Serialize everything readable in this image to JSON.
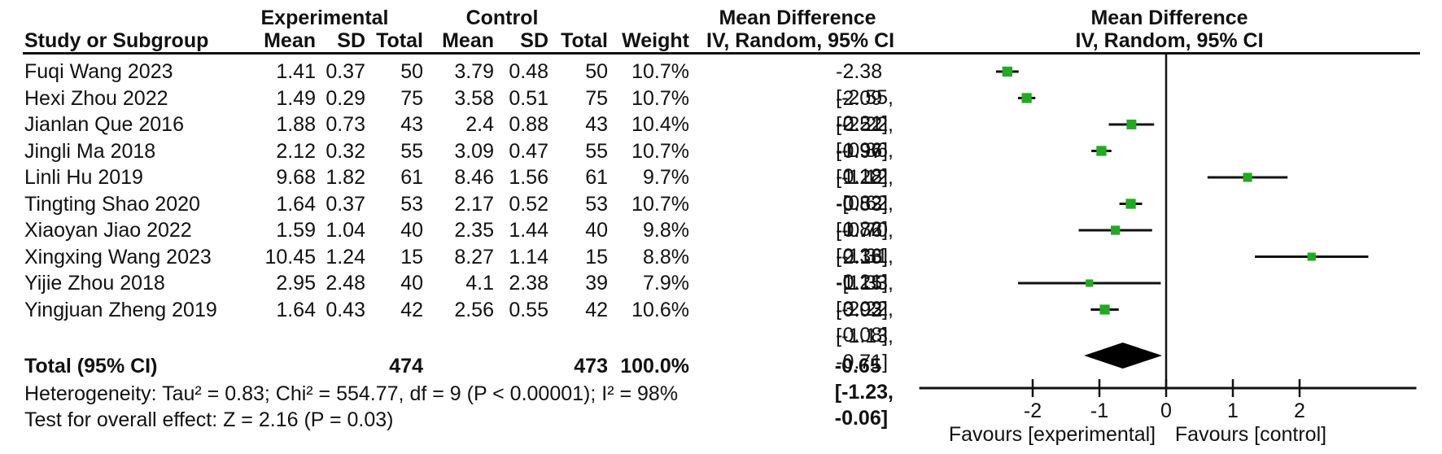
{
  "header": {
    "group_experimental": "Experimental",
    "group_control": "Control",
    "group_md_text": "Mean Difference",
    "group_md_plot": "Mean Difference",
    "col_study": "Study or Subgroup",
    "col_mean_e": "Mean",
    "col_sd_e": "SD",
    "col_total_e": "Total",
    "col_mean_c": "Mean",
    "col_sd_c": "SD",
    "col_total_c": "Total",
    "col_weight": "Weight",
    "col_ci": "IV, Random, 95% CI",
    "col_ci_plot": "IV, Random, 95% CI"
  },
  "studies": [
    {
      "name": "Fuqi Wang 2023",
      "mean_e": "1.41",
      "sd_e": "0.37",
      "total_e": "50",
      "mean_c": "3.79",
      "sd_c": "0.48",
      "total_c": "50",
      "weight": "10.7%",
      "ci": "-2.38 [-2.55, -2.21]"
    },
    {
      "name": "Hexi Zhou 2022",
      "mean_e": "1.49",
      "sd_e": "0.29",
      "total_e": "75",
      "mean_c": "3.58",
      "sd_c": "0.51",
      "total_c": "75",
      "weight": "10.7%",
      "ci": "-2.09 [-2.22, -1.96]"
    },
    {
      "name": "Jianlan Que 2016",
      "mean_e": "1.88",
      "sd_e": "0.73",
      "total_e": "43",
      "mean_c": "2.4",
      "sd_c": "0.88",
      "total_c": "43",
      "weight": "10.4%",
      "ci": "-0.52 [-0.86, -0.18]"
    },
    {
      "name": "Jingli Ma 2018",
      "mean_e": "2.12",
      "sd_e": "0.32",
      "total_e": "55",
      "mean_c": "3.09",
      "sd_c": "0.47",
      "total_c": "55",
      "weight": "10.7%",
      "ci": "-0.97 [-1.12, -0.82]"
    },
    {
      "name": "Linli Hu 2019",
      "mean_e": "9.68",
      "sd_e": "1.82",
      "total_e": "61",
      "mean_c": "8.46",
      "sd_c": "1.56",
      "total_c": "61",
      "weight": "9.7%",
      "ci": "1.22 [0.62, 1.82]"
    },
    {
      "name": "Tingting Shao 2020",
      "mean_e": "1.64",
      "sd_e": "0.37",
      "total_e": "53",
      "mean_c": "2.17",
      "sd_c": "0.52",
      "total_c": "53",
      "weight": "10.7%",
      "ci": "-0.53 [-0.70, -0.36]"
    },
    {
      "name": "Xiaoyan Jiao 2022",
      "mean_e": "1.59",
      "sd_e": "1.04",
      "total_e": "40",
      "mean_c": "2.35",
      "sd_c": "1.44",
      "total_c": "40",
      "weight": "9.8%",
      "ci": "-0.76 [-1.31, -0.21]"
    },
    {
      "name": "Xingxing Wang 2023",
      "mean_e": "10.45",
      "sd_e": "1.24",
      "total_e": "15",
      "mean_c": "8.27",
      "sd_c": "1.14",
      "total_c": "15",
      "weight": "8.8%",
      "ci": "2.18 [1.33, 3.03]"
    },
    {
      "name": "Yijie Zhou 2018",
      "mean_e": "2.95",
      "sd_e": "2.48",
      "total_e": "40",
      "mean_c": "4.1",
      "sd_c": "2.38",
      "total_c": "39",
      "weight": "7.9%",
      "ci": "-1.15 [-2.22, -0.08]"
    },
    {
      "name": "Yingjuan Zheng 2019",
      "mean_e": "1.64",
      "sd_e": "0.43",
      "total_e": "42",
      "mean_c": "2.56",
      "sd_c": "0.55",
      "total_c": "42",
      "weight": "10.6%",
      "ci": "-0.92 [-1.13, -0.71]"
    }
  ],
  "total_row": {
    "label": "Total (95% CI)",
    "total_e": "474",
    "total_c": "473",
    "weight": "100.0%",
    "ci": "-0.65 [-1.23, -0.06]"
  },
  "footnotes": {
    "heterogeneity": "Heterogeneity: Tau² = 0.83; Chi² = 554.77, df = 9 (P < 0.00001); I² = 98%",
    "overall_effect": "Test for overall effect: Z = 2.16 (P = 0.03)"
  },
  "chart_data": {
    "type": "scatter",
    "subtype": "forest-plot",
    "effect_measure": "Mean Difference, IV, Random, 95% CI",
    "x_ticks": [
      -2,
      -1,
      0,
      1,
      2
    ],
    "xlim": [
      -3.7,
      3.75
    ],
    "zero_line": 0,
    "axis_label_left": "Favours [experimental]",
    "axis_label_right": "Favours [control]",
    "marker_color": "#22aa22",
    "ci_color": "#111111",
    "studies": [
      {
        "name": "Fuqi Wang 2023",
        "md": -2.38,
        "lo": -2.55,
        "hi": -2.21,
        "weight_pct": 10.7
      },
      {
        "name": "Hexi Zhou 2022",
        "md": -2.09,
        "lo": -2.22,
        "hi": -1.96,
        "weight_pct": 10.7
      },
      {
        "name": "Jianlan Que 2016",
        "md": -0.52,
        "lo": -0.86,
        "hi": -0.18,
        "weight_pct": 10.4
      },
      {
        "name": "Jingli Ma 2018",
        "md": -0.97,
        "lo": -1.12,
        "hi": -0.82,
        "weight_pct": 10.7
      },
      {
        "name": "Linli Hu 2019",
        "md": 1.22,
        "lo": 0.62,
        "hi": 1.82,
        "weight_pct": 9.7
      },
      {
        "name": "Tingting Shao 2020",
        "md": -0.53,
        "lo": -0.7,
        "hi": -0.36,
        "weight_pct": 10.7
      },
      {
        "name": "Xiaoyan Jiao 2022",
        "md": -0.76,
        "lo": -1.31,
        "hi": -0.21,
        "weight_pct": 9.8
      },
      {
        "name": "Xingxing Wang 2023",
        "md": 2.18,
        "lo": 1.33,
        "hi": 3.03,
        "weight_pct": 8.8
      },
      {
        "name": "Yijie Zhou 2018",
        "md": -1.15,
        "lo": -2.22,
        "hi": -0.08,
        "weight_pct": 7.9
      },
      {
        "name": "Yingjuan Zheng 2019",
        "md": -0.92,
        "lo": -1.13,
        "hi": -0.71,
        "weight_pct": 10.6
      }
    ],
    "total": {
      "md": -0.65,
      "lo": -1.23,
      "hi": -0.06,
      "weight_pct": 100.0
    }
  }
}
